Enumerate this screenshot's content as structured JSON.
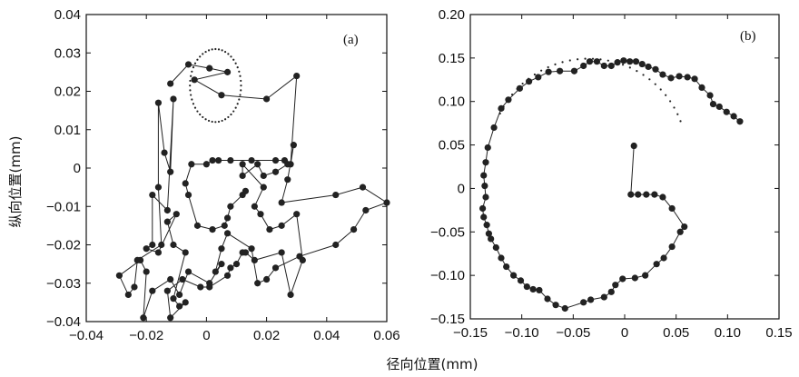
{
  "figure": {
    "ylabel": "纵向位置(mm)",
    "xlabel": "径向位置(mm)"
  },
  "chart_data": [
    {
      "type": "scatter",
      "panel_label": "(a)",
      "xlim": [
        -0.04,
        0.06
      ],
      "ylim": [
        -0.04,
        0.04
      ],
      "xticks": [
        -0.04,
        -0.02,
        0,
        0.02,
        0.04,
        0.06
      ],
      "xtick_labels": [
        "−0.04",
        "−0.02",
        "0",
        "0.02",
        "0.04",
        "0.06"
      ],
      "yticks": [
        -0.04,
        -0.03,
        -0.02,
        -0.01,
        0,
        0.01,
        0.02,
        0.03,
        0.04
      ],
      "ytick_labels": [
        "−0.04",
        "−0.03",
        "−0.02",
        "−0.01",
        "0",
        "0.01",
        "0.02",
        "0.03",
        "0.04"
      ],
      "grid": false,
      "reference_ellipse": {
        "cx": 0.003,
        "cy": 0.0215,
        "rx": 0.0085,
        "ry": 0.0095,
        "style": "dotted"
      },
      "trajectory": [
        [
          -0.012,
          0.022
        ],
        [
          -0.006,
          0.027
        ],
        [
          0.001,
          0.026
        ],
        [
          0.007,
          0.025
        ],
        [
          -0.004,
          0.023
        ],
        [
          0.005,
          0.019
        ],
        [
          0.02,
          0.018
        ],
        [
          0.03,
          0.024
        ],
        [
          0.028,
          0.001
        ],
        [
          0.029,
          0.006
        ],
        [
          0.027,
          -0.003
        ],
        [
          0.025,
          -0.009
        ],
        [
          0.043,
          -0.007
        ],
        [
          0.052,
          -0.005
        ],
        [
          0.06,
          -0.009
        ],
        [
          0.053,
          -0.011
        ],
        [
          0.049,
          -0.016
        ],
        [
          0.043,
          -0.02
        ],
        [
          0.031,
          -0.023
        ],
        [
          0.023,
          -0.026
        ],
        [
          0.02,
          -0.029
        ],
        [
          0.017,
          -0.03
        ],
        [
          0.015,
          -0.021
        ],
        [
          0.007,
          -0.017
        ],
        [
          0.005,
          -0.021
        ],
        [
          0.003,
          -0.027
        ],
        [
          0.005,
          -0.025
        ],
        [
          0.001,
          -0.03
        ],
        [
          -0.006,
          -0.027
        ],
        [
          -0.009,
          -0.033
        ],
        [
          -0.012,
          -0.029
        ],
        [
          -0.018,
          -0.032
        ],
        [
          -0.021,
          -0.039
        ],
        [
          -0.02,
          -0.027
        ],
        [
          -0.022,
          -0.024
        ],
        [
          -0.029,
          -0.028
        ],
        [
          -0.026,
          -0.033
        ],
        [
          -0.024,
          -0.031
        ],
        [
          -0.023,
          -0.024
        ],
        [
          -0.015,
          -0.02
        ],
        [
          -0.016,
          -0.005
        ],
        [
          -0.016,
          0.017
        ],
        [
          -0.014,
          0.004
        ],
        [
          -0.012,
          -0.001
        ],
        [
          -0.011,
          0.018
        ],
        [
          -0.013,
          -0.011
        ],
        [
          -0.018,
          -0.007
        ],
        [
          -0.018,
          -0.02
        ],
        [
          -0.02,
          -0.021
        ],
        [
          -0.016,
          -0.022
        ],
        [
          -0.01,
          -0.012
        ],
        [
          -0.013,
          -0.014
        ],
        [
          -0.011,
          -0.02
        ],
        [
          -0.007,
          -0.022
        ],
        [
          -0.011,
          -0.034
        ],
        [
          -0.009,
          -0.036
        ],
        [
          -0.007,
          -0.035
        ],
        [
          -0.012,
          -0.039
        ],
        [
          -0.013,
          -0.032
        ],
        [
          -0.008,
          -0.029
        ],
        [
          -0.002,
          -0.031
        ],
        [
          0.001,
          -0.031
        ],
        [
          0.007,
          -0.028
        ],
        [
          0.008,
          -0.026
        ],
        [
          0.01,
          -0.025
        ],
        [
          0.012,
          -0.022
        ],
        [
          0.013,
          -0.022
        ],
        [
          0.016,
          -0.024
        ],
        [
          0.025,
          -0.022
        ],
        [
          0.028,
          -0.033
        ],
        [
          0.032,
          -0.024
        ],
        [
          0.03,
          -0.012
        ],
        [
          0.025,
          -0.015
        ],
        [
          0.021,
          -0.016
        ],
        [
          0.018,
          -0.012
        ],
        [
          0.016,
          -0.01
        ],
        [
          0.019,
          -0.005
        ],
        [
          0.012,
          0.001
        ],
        [
          0.012,
          -0.002
        ],
        [
          0.017,
          0.001
        ],
        [
          0.019,
          -0.002
        ],
        [
          0.023,
          -0.001
        ],
        [
          0.027,
          0.001
        ],
        [
          0.026,
          0.002
        ],
        [
          0.023,
          0.002
        ],
        [
          0.015,
          0.002
        ],
        [
          0.008,
          0.002
        ],
        [
          0.004,
          0.002
        ],
        [
          0.002,
          0.002
        ],
        [
          0.0,
          0.001
        ],
        [
          -0.005,
          0.001
        ],
        [
          -0.007,
          -0.004
        ],
        [
          -0.006,
          -0.007
        ],
        [
          -0.003,
          -0.015
        ],
        [
          0.002,
          -0.016
        ],
        [
          0.006,
          -0.015
        ],
        [
          0.007,
          -0.013
        ],
        [
          0.008,
          -0.01
        ],
        [
          0.012,
          -0.007
        ],
        [
          0.013,
          -0.006
        ]
      ]
    },
    {
      "type": "scatter",
      "panel_label": "(b)",
      "xlim": [
        -0.15,
        0.15
      ],
      "ylim": [
        -0.15,
        0.2
      ],
      "xticks": [
        -0.15,
        -0.1,
        -0.05,
        0,
        0.05,
        0.1,
        0.15
      ],
      "xtick_labels": [
        "−0.15",
        "−0.10",
        "−0.05",
        "0",
        "0.05",
        "0.10",
        "0.15"
      ],
      "yticks": [
        -0.15,
        -0.1,
        -0.05,
        0,
        0.05,
        0.1,
        0.15,
        0.2
      ],
      "ytick_labels": [
        "−0.15",
        "−0.10",
        "−0.05",
        "0",
        "0.05",
        "0.10",
        "0.15",
        "0.20"
      ],
      "grid": false,
      "reference_arc": {
        "cx": -0.035,
        "cy": 0.04,
        "r": 0.095,
        "style": "dotted"
      },
      "trajectory": [
        [
          0.112,
          0.077
        ],
        [
          0.106,
          0.083
        ],
        [
          0.099,
          0.088
        ],
        [
          0.092,
          0.094
        ],
        [
          0.086,
          0.097
        ],
        [
          0.083,
          0.107
        ],
        [
          0.075,
          0.116
        ],
        [
          0.068,
          0.126
        ],
        [
          0.061,
          0.128
        ],
        [
          0.053,
          0.129
        ],
        [
          0.045,
          0.127
        ],
        [
          0.037,
          0.131
        ],
        [
          0.03,
          0.137
        ],
        [
          0.023,
          0.14
        ],
        [
          0.017,
          0.143
        ],
        [
          0.011,
          0.146
        ],
        [
          0.005,
          0.146
        ],
        [
          -0.001,
          0.147
        ],
        [
          -0.007,
          0.145
        ],
        [
          -0.013,
          0.141
        ],
        [
          -0.02,
          0.141
        ],
        [
          -0.027,
          0.146
        ],
        [
          -0.034,
          0.146
        ],
        [
          -0.04,
          0.141
        ],
        [
          -0.049,
          0.135
        ],
        [
          -0.063,
          0.135
        ],
        [
          -0.074,
          0.134
        ],
        [
          -0.084,
          0.128
        ],
        [
          -0.093,
          0.123
        ],
        [
          -0.102,
          0.115
        ],
        [
          -0.113,
          0.102
        ],
        [
          -0.12,
          0.092
        ],
        [
          -0.127,
          0.07
        ],
        [
          -0.133,
          0.047
        ],
        [
          -0.135,
          0.03
        ],
        [
          -0.137,
          0.015
        ],
        [
          -0.136,
          0.003
        ],
        [
          -0.135,
          -0.01
        ],
        [
          -0.138,
          -0.023
        ],
        [
          -0.137,
          -0.033
        ],
        [
          -0.134,
          -0.042
        ],
        [
          -0.132,
          -0.052
        ],
        [
          -0.13,
          -0.058
        ],
        [
          -0.125,
          -0.068
        ],
        [
          -0.12,
          -0.08
        ],
        [
          -0.115,
          -0.09
        ],
        [
          -0.108,
          -0.1
        ],
        [
          -0.101,
          -0.106
        ],
        [
          -0.095,
          -0.113
        ],
        [
          -0.089,
          -0.116
        ],
        [
          -0.083,
          -0.117
        ],
        [
          -0.075,
          -0.127
        ],
        [
          -0.067,
          -0.134
        ],
        [
          -0.058,
          -0.138
        ],
        [
          -0.04,
          -0.131
        ],
        [
          -0.033,
          -0.128
        ],
        [
          -0.02,
          -0.125
        ],
        [
          -0.013,
          -0.119
        ],
        [
          -0.009,
          -0.111
        ],
        [
          -0.002,
          -0.104
        ],
        [
          0.01,
          -0.103
        ],
        [
          0.02,
          -0.1
        ],
        [
          0.031,
          -0.087
        ],
        [
          0.038,
          -0.08
        ],
        [
          0.046,
          -0.067
        ],
        [
          0.054,
          -0.05
        ],
        [
          0.058,
          -0.044
        ],
        [
          0.046,
          -0.023
        ],
        [
          0.037,
          -0.01
        ],
        [
          0.029,
          -0.007
        ],
        [
          0.021,
          -0.007
        ],
        [
          0.013,
          -0.007
        ],
        [
          0.006,
          -0.007
        ],
        [
          0.009,
          0.049
        ]
      ]
    }
  ]
}
